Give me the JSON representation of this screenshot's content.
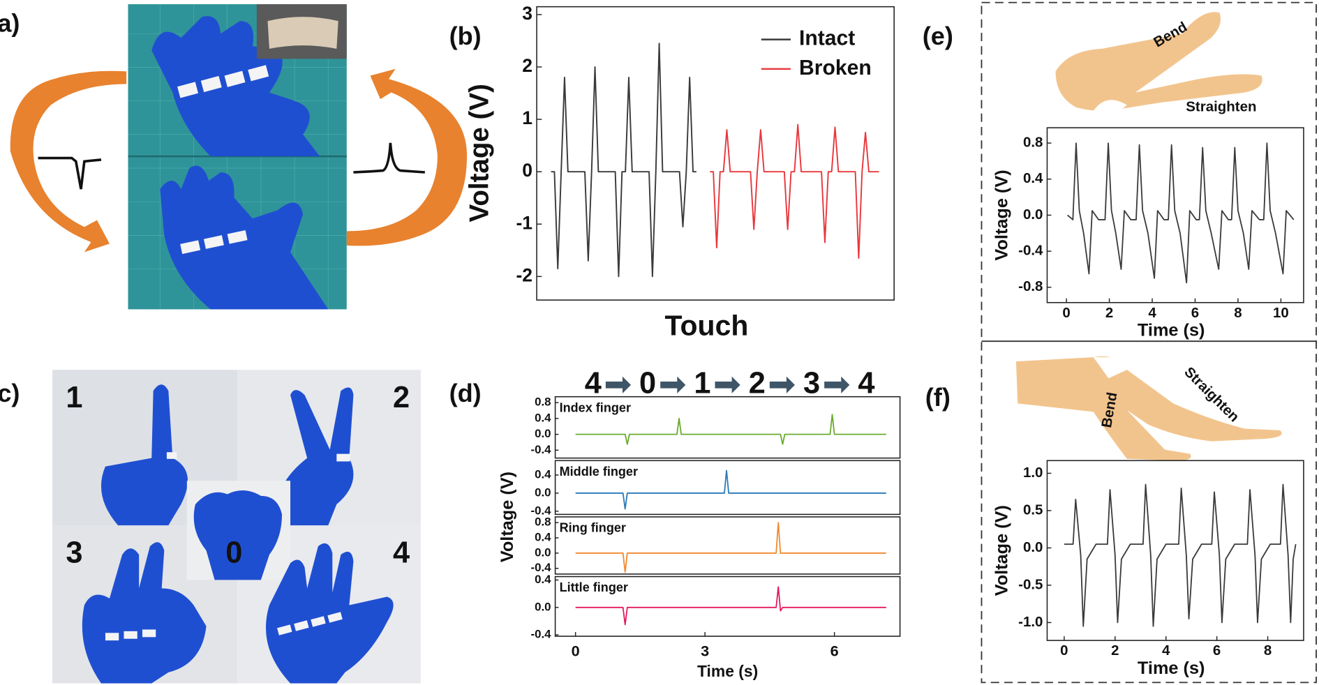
{
  "labels": {
    "panels": [
      "(a)",
      "(b)",
      "(c)",
      "(d)",
      "(e)",
      "(f)"
    ],
    "gestures": [
      "1",
      "2",
      "3",
      "0",
      "4"
    ],
    "arm": [
      "Bend",
      "Straighten"
    ],
    "leg": [
      "Bend",
      "Straighten"
    ]
  },
  "chart_data": [
    {
      "type": "line",
      "xlabel": "Touch",
      "ylabel": "Voltage (V)",
      "ylim": [
        -2.45,
        3.15
      ],
      "yticks": [
        -2,
        -1,
        0,
        1,
        2,
        3
      ],
      "legend": "upper right",
      "series": [
        {
          "name": "Intact",
          "color": "#3a3a3a",
          "values": [
            0,
            0,
            -1.85,
            0,
            1.8,
            0,
            0,
            0,
            0,
            0,
            0,
            -1.7,
            0,
            2.0,
            0,
            0,
            0,
            0,
            0,
            0,
            -2.0,
            0,
            0,
            1.8,
            0,
            0,
            0,
            0,
            0,
            0,
            -2.0,
            0,
            2.45,
            0,
            0,
            0,
            0,
            0,
            0,
            -1.05,
            0,
            1.8,
            0,
            0,
            null,
            null,
            null,
            null,
            null,
            null,
            null,
            null,
            null,
            null,
            null,
            null,
            null,
            null,
            null,
            null,
            null,
            null,
            null,
            null,
            null,
            null,
            null,
            null,
            null,
            null,
            null,
            null,
            null,
            null,
            null,
            null,
            null,
            null,
            null,
            null,
            null,
            null,
            null,
            null,
            null,
            null,
            null,
            null,
            null,
            null,
            null,
            null,
            null,
            null,
            null,
            null,
            null,
            null
          ]
        },
        {
          "name": "Broken",
          "color": "#e8383d",
          "values": [
            null,
            null,
            null,
            null,
            null,
            null,
            null,
            null,
            null,
            null,
            null,
            null,
            null,
            null,
            null,
            null,
            null,
            null,
            null,
            null,
            null,
            null,
            null,
            null,
            null,
            null,
            null,
            null,
            null,
            null,
            null,
            null,
            null,
            null,
            null,
            null,
            null,
            null,
            null,
            null,
            null,
            null,
            null,
            null,
            null,
            null,
            null,
            0,
            0,
            -1.45,
            0,
            0,
            0.8,
            0,
            0,
            0,
            0,
            0,
            0,
            0,
            -1.1,
            0,
            0.8,
            0,
            0,
            0,
            0,
            0,
            0,
            0,
            -1.1,
            0,
            0,
            0.9,
            0,
            0,
            0,
            0,
            0,
            0,
            0,
            -1.35,
            0,
            0,
            0.85,
            0,
            0,
            0,
            0,
            0,
            0,
            -1.65,
            0,
            0.75,
            0,
            0,
            0,
            0
          ]
        }
      ]
    },
    {
      "type": "line",
      "sequence": [
        "4",
        "0",
        "1",
        "2",
        "3",
        "4"
      ],
      "xlabel": "Time (s)",
      "ylabel": "Voltage (V)",
      "xlim": [
        -0.47,
        7.52
      ],
      "xticks": [
        0,
        3,
        6
      ],
      "x": [
        0,
        1.1,
        1.15,
        1.2,
        1.25,
        2.35,
        2.4,
        2.45,
        3.45,
        3.5,
        3.55,
        4.65,
        4.7,
        4.75,
        4.8,
        4.85,
        5.9,
        5.95,
        6.0,
        7.2
      ],
      "series": [
        {
          "name": "Index finger",
          "color": "#6aab2e",
          "ylim": [
            -0.6,
            0.95
          ],
          "yticks": [
            -0.4,
            {
              "value": 0,
              "label": "0.0"
            },
            0.4,
            0.8
          ],
          "values": [
            0,
            0,
            0,
            -0.25,
            0,
            0,
            0.4,
            0,
            0,
            0,
            0,
            0,
            0,
            0,
            -0.25,
            0,
            0,
            0.5,
            0,
            0
          ]
        },
        {
          "name": "Middle finger",
          "color": "#2a7ab8",
          "ylim": [
            -0.47,
            0.72
          ],
          "yticks": [
            -0.4,
            {
              "value": 0,
              "label": "0.0"
            },
            0.4
          ],
          "values": [
            0,
            0,
            -0.35,
            0,
            0,
            0,
            0,
            0,
            0,
            0.5,
            0,
            0,
            0,
            0,
            0,
            0,
            0,
            0,
            0,
            0
          ]
        },
        {
          "name": "Ring finger",
          "color": "#f08a30",
          "ylim": [
            -0.55,
            0.95
          ],
          "yticks": [
            -0.4,
            {
              "value": 0,
              "label": "0.0"
            },
            0.4,
            0.8
          ],
          "values": [
            0,
            0,
            -0.5,
            0,
            0,
            0,
            0,
            0,
            0,
            0,
            0,
            0,
            0.8,
            0,
            0,
            0,
            0,
            0,
            0,
            0
          ]
        },
        {
          "name": "Little finger",
          "color": "#e5195e",
          "ylim": [
            -0.42,
            0.45
          ],
          "yticks": [
            -0.4,
            {
              "value": 0,
              "label": "0.0"
            },
            0.4
          ],
          "values": [
            0,
            0,
            -0.25,
            0,
            0,
            0,
            0,
            0,
            0,
            0,
            0,
            0,
            0.3,
            -0.05,
            0,
            0,
            0,
            0,
            0,
            0
          ]
        }
      ]
    },
    {
      "type": "line",
      "xlabel": "Time (s)",
      "ylabel": "Voltage (V)",
      "xlim": [
        -0.9,
        11.06
      ],
      "ylim": [
        -0.97,
        0.97
      ],
      "xticks": [
        0,
        2,
        4,
        6,
        8,
        10
      ],
      "yticks": [
        -0.8,
        -0.4,
        {
          "value": 0,
          "label": "0.0"
        },
        0.4,
        0.8
      ],
      "x": [
        0.05,
        0.3,
        0.45,
        0.6,
        0.8,
        1.05,
        1.2,
        1.5,
        1.8,
        1.95,
        2.1,
        2.3,
        2.55,
        2.7,
        3.0,
        3.25,
        3.4,
        3.55,
        3.8,
        4.1,
        4.25,
        4.55,
        4.75,
        4.9,
        5.05,
        5.3,
        5.6,
        5.75,
        6.05,
        6.2,
        6.35,
        6.5,
        6.75,
        7.1,
        7.25,
        7.55,
        7.7,
        7.85,
        8.0,
        8.25,
        8.5,
        8.65,
        9.0,
        9.2,
        9.35,
        9.5,
        9.75,
        10.1,
        10.25,
        10.6
      ],
      "series": [
        {
          "color": "#3a3a3a",
          "values": [
            0,
            -0.05,
            0.8,
            0.05,
            -0.2,
            -0.65,
            0.05,
            -0.05,
            -0.05,
            0.8,
            0.05,
            -0.2,
            -0.6,
            0.05,
            -0.05,
            -0.05,
            0.78,
            0.05,
            -0.2,
            -0.7,
            0.05,
            -0.05,
            -0.05,
            0.78,
            0.05,
            -0.2,
            -0.75,
            0.05,
            -0.05,
            -0.05,
            0.75,
            0.05,
            -0.2,
            -0.6,
            0.05,
            -0.05,
            -0.05,
            0.75,
            0.05,
            -0.2,
            -0.6,
            0.05,
            -0.05,
            -0.05,
            0.8,
            0.05,
            -0.2,
            -0.65,
            0.05,
            -0.05
          ]
        }
      ]
    },
    {
      "type": "line",
      "xlabel": "Time (s)",
      "ylabel": "Voltage (V)",
      "xlim": [
        -0.67,
        9.41
      ],
      "ylim": [
        -1.24,
        1.17
      ],
      "xticks": [
        0,
        2,
        4,
        6,
        8
      ],
      "yticks": [
        {
          "value": -1,
          "label": "-1.0"
        },
        -0.5,
        {
          "value": 0,
          "label": "0.0"
        },
        0.5,
        {
          "value": 1,
          "label": "1.0"
        }
      ],
      "x": [
        0,
        0.35,
        0.45,
        0.65,
        0.75,
        0.9,
        1.25,
        1.7,
        1.8,
        2.0,
        2.1,
        2.25,
        2.6,
        3.1,
        3.2,
        3.4,
        3.5,
        3.65,
        4.0,
        4.5,
        4.6,
        4.8,
        4.9,
        5.05,
        5.4,
        5.8,
        5.9,
        6.1,
        6.2,
        6.35,
        6.7,
        7.2,
        7.3,
        7.5,
        7.6,
        7.75,
        8.1,
        8.5,
        8.6,
        8.8,
        8.9,
        9.0,
        9.1
      ],
      "series": [
        {
          "color": "#3a3a3a",
          "values": [
            0.05,
            0.05,
            0.65,
            -0.1,
            -1.05,
            -0.15,
            0.05,
            0.05,
            0.78,
            -0.1,
            -1.0,
            -0.15,
            0.05,
            0.05,
            0.85,
            -0.1,
            -1.05,
            -0.15,
            0.05,
            0.05,
            0.8,
            -0.1,
            -0.95,
            -0.15,
            0.05,
            0.05,
            0.75,
            -0.1,
            -1.0,
            -0.15,
            0.05,
            0.05,
            0.78,
            -0.1,
            -1.0,
            -0.15,
            0.05,
            0.05,
            0.85,
            -0.1,
            -1.0,
            -0.15,
            0.05
          ]
        }
      ]
    }
  ]
}
